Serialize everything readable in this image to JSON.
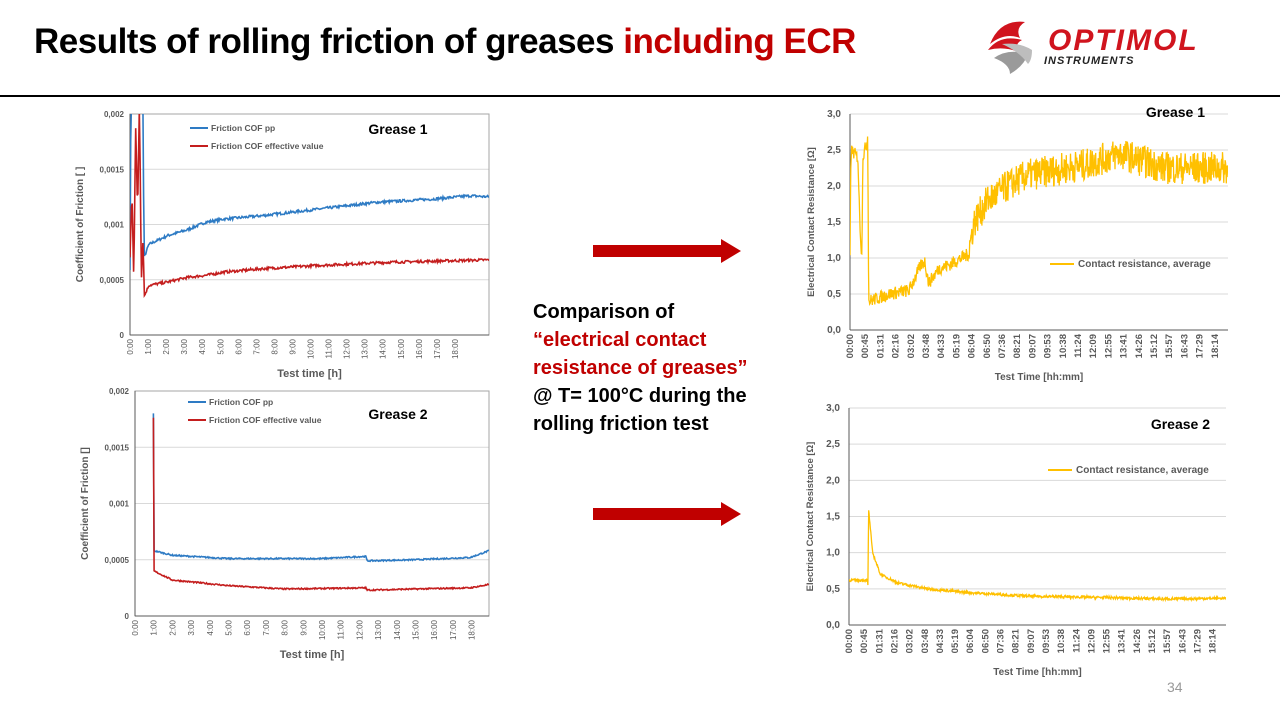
{
  "slide": {
    "title_main": "Results of rolling friction of greases ",
    "title_highlight": "including ECR",
    "logo": {
      "name": "OPTIMOL",
      "sub": "INSTRUMENTS"
    },
    "middle_text": {
      "line1": "Comparison of",
      "line2_red": "“electrical contact resistance of greases”",
      "line3": "@ T= 100°C during the rolling friction test"
    },
    "page_number": "34",
    "colors": {
      "accent": "#c00000",
      "blue": "#2e7bc4",
      "red": "#c41e1e",
      "yellow": "#ffc000"
    }
  },
  "chart_data": [
    {
      "type": "line",
      "title": "Grease 1",
      "xlabel": "Test time [h]",
      "ylabel": "Coefficient of Friction [ ]",
      "xlim": [
        0,
        19
      ],
      "ylim": [
        0,
        0.002
      ],
      "yticks": [
        "0",
        "0,0005",
        "0,001",
        "0,0015",
        "0,002"
      ],
      "xticks": [
        "0:00",
        "1:00",
        "2:00",
        "3:00",
        "4:00",
        "5:00",
        "6:00",
        "7:00",
        "8:00",
        "9:00",
        "10:00",
        "11:00",
        "12:00",
        "13:00",
        "14:00",
        "15:00",
        "16:00",
        "17:00",
        "18:00"
      ],
      "grid": true,
      "legend": "top-left",
      "series": [
        {
          "name": "Friction COF pp",
          "color": "#2e7bc4",
          "points": [
            [
              0,
              0.0006
            ],
            [
              0.05,
              0.0021
            ],
            [
              0.7,
              0.0021
            ],
            [
              0.72,
              0.0013
            ],
            [
              0.75,
              0.0007
            ],
            [
              1,
              0.00082
            ],
            [
              2,
              0.0009
            ],
            [
              3,
              0.00095
            ],
            [
              4,
              0.00102
            ],
            [
              5,
              0.00105
            ],
            [
              7,
              0.00108
            ],
            [
              10,
              0.00114
            ],
            [
              13,
              0.0012
            ],
            [
              16,
              0.00123
            ],
            [
              18,
              0.00126
            ],
            [
              19,
              0.00125
            ]
          ]
        },
        {
          "name": "Friction COF effective value",
          "color": "#c41e1e",
          "points": [
            [
              0,
              0.0007
            ],
            [
              0.1,
              0.0013
            ],
            [
              0.2,
              0.0005
            ],
            [
              0.3,
              0.0019
            ],
            [
              0.4,
              0.0011
            ],
            [
              0.5,
              0.0021
            ],
            [
              0.6,
              0.0005
            ],
            [
              0.7,
              0.0009
            ],
            [
              0.75,
              0.00035
            ],
            [
              1,
              0.00045
            ],
            [
              2,
              0.00048
            ],
            [
              3,
              0.00052
            ],
            [
              4,
              0.00054
            ],
            [
              5,
              0.00057
            ],
            [
              7,
              0.0006
            ],
            [
              10,
              0.00063
            ],
            [
              14,
              0.00066
            ],
            [
              19,
              0.00068
            ]
          ]
        }
      ]
    },
    {
      "type": "line",
      "title": "Grease 2",
      "xlabel": "Test time  [h]",
      "ylabel": "Coefficient of Friction []",
      "xlim": [
        0,
        19
      ],
      "ylim": [
        0,
        0.002
      ],
      "yticks": [
        "0",
        "0,0005",
        "0,001",
        "0,0015",
        "0,002"
      ],
      "xticks": [
        "0:00",
        "1:00",
        "2:00",
        "3:00",
        "4:00",
        "5:00",
        "6:00",
        "7:00",
        "8:00",
        "9:00",
        "10:00",
        "11:00",
        "12:00",
        "13:00",
        "14:00",
        "15:00",
        "16:00",
        "17:00",
        "18:00"
      ],
      "grid": true,
      "legend": "top-left",
      "series": [
        {
          "name": "Friction COF pp",
          "color": "#2e7bc4",
          "points": [
            [
              0.98,
              0.0021
            ],
            [
              1.02,
              0.00058
            ],
            [
              2,
              0.00054
            ],
            [
              5,
              0.00051
            ],
            [
              10,
              0.00051
            ],
            [
              12.4,
              0.00053
            ],
            [
              12.45,
              0.00049
            ],
            [
              15,
              0.0005
            ],
            [
              18,
              0.00052
            ],
            [
              19,
              0.00058
            ]
          ]
        },
        {
          "name": "Friction COF effective value",
          "color": "#c41e1e",
          "points": [
            [
              0.98,
              0.0021
            ],
            [
              1.02,
              0.0004
            ],
            [
              2,
              0.00032
            ],
            [
              5,
              0.00027
            ],
            [
              8,
              0.00024
            ],
            [
              12.4,
              0.00025
            ],
            [
              12.45,
              0.00023
            ],
            [
              15,
              0.00024
            ],
            [
              18,
              0.00025
            ],
            [
              19,
              0.00028
            ]
          ]
        }
      ]
    },
    {
      "type": "line",
      "title": "Grease 1",
      "xlabel": "Test Time [hh:mm]",
      "ylabel": "Electrical Contact Resistance [Ω]",
      "xlim": [
        0,
        19.2
      ],
      "ylim": [
        0,
        3
      ],
      "yticks": [
        "0,0",
        "0,5",
        "1,0",
        "1,5",
        "2,0",
        "2,5",
        "3,0"
      ],
      "xticks": [
        "00:00",
        "00:45",
        "01:31",
        "02:16",
        "03:02",
        "03:48",
        "04:33",
        "05:19",
        "06:04",
        "06:50",
        "07:36",
        "08:21",
        "09:07",
        "09:53",
        "10:38",
        "11:24",
        "12:09",
        "12:55",
        "13:41",
        "14:26",
        "15:12",
        "15:57",
        "16:43",
        "17:29",
        "18:14"
      ],
      "grid": true,
      "legend": "right",
      "series": [
        {
          "name": "Contact resistance, average",
          "color": "#ffc000",
          "points": [
            [
              0,
              1.0
            ],
            [
              0.05,
              2.5
            ],
            [
              0.4,
              2.4
            ],
            [
              0.5,
              1.5
            ],
            [
              0.6,
              1.0
            ],
            [
              0.65,
              2.4
            ],
            [
              0.85,
              2.6
            ],
            [
              0.9,
              2.7
            ],
            [
              0.95,
              0.4
            ],
            [
              2,
              0.5
            ],
            [
              3,
              0.55
            ],
            [
              3.6,
              0.9
            ],
            [
              3.8,
              0.95
            ],
            [
              4.0,
              0.65
            ],
            [
              4.5,
              0.85
            ],
            [
              5,
              0.9
            ],
            [
              6,
              1.05
            ],
            [
              6.3,
              1.5
            ],
            [
              7,
              1.8
            ],
            [
              8,
              2.0
            ],
            [
              9,
              2.15
            ],
            [
              10,
              2.2
            ],
            [
              12,
              2.3
            ],
            [
              13.7,
              2.45
            ],
            [
              16,
              2.25
            ],
            [
              19.2,
              2.25
            ]
          ]
        }
      ]
    },
    {
      "type": "line",
      "title": "Grease 2",
      "xlabel": "Test Time [hh:mm]",
      "ylabel": "Electrical Contact Resistance [Ω]",
      "xlim": [
        0,
        19.2
      ],
      "ylim": [
        0,
        3
      ],
      "yticks": [
        "0,0",
        "0,5",
        "1,0",
        "1,5",
        "2,0",
        "2,5",
        "3,0"
      ],
      "xticks": [
        "00:00",
        "00:45",
        "01:31",
        "02:16",
        "03:02",
        "03:48",
        "04:33",
        "05:19",
        "06:04",
        "06:50",
        "07:36",
        "08:21",
        "09:07",
        "09:53",
        "10:38",
        "11:24",
        "12:09",
        "12:55",
        "13:41",
        "14:26",
        "15:12",
        "15:57",
        "16:43",
        "17:29",
        "18:14"
      ],
      "grid": true,
      "legend": "right",
      "series": [
        {
          "name": "Contact resistance, average",
          "color": "#ffc000",
          "points": [
            [
              0,
              0.62
            ],
            [
              0.95,
              0.62
            ],
            [
              0.96,
              0.55
            ],
            [
              1.0,
              1.6
            ],
            [
              1.2,
              1.0
            ],
            [
              1.6,
              0.7
            ],
            [
              2.5,
              0.58
            ],
            [
              4,
              0.5
            ],
            [
              6,
              0.45
            ],
            [
              9,
              0.4
            ],
            [
              13,
              0.38
            ],
            [
              16,
              0.36
            ],
            [
              19.2,
              0.37
            ]
          ]
        }
      ]
    }
  ]
}
